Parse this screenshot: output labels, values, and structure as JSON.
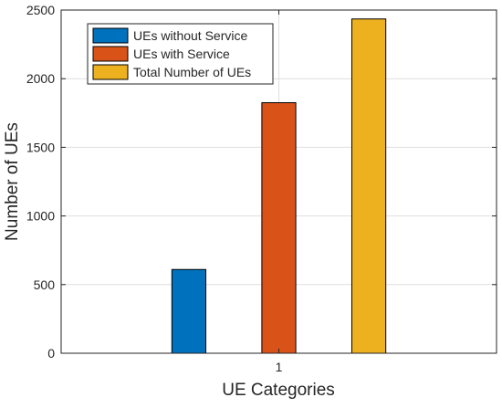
{
  "chart_data": {
    "type": "bar",
    "title": "",
    "xlabel": "UE Categories",
    "ylabel": "Number of UEs",
    "categories": [
      "1"
    ],
    "ylim": [
      0,
      2500
    ],
    "yticks": [
      0,
      500,
      1000,
      1500,
      2000,
      2500
    ],
    "grid": true,
    "legend_position": "top-left",
    "series": [
      {
        "name": "UEs without Service",
        "values": [
          610
        ],
        "color": "#0072BD"
      },
      {
        "name": "UEs with Service",
        "values": [
          1825
        ],
        "color": "#D95319"
      },
      {
        "name": "Total Number of UEs",
        "values": [
          2435
        ],
        "color": "#EDB120"
      }
    ]
  }
}
